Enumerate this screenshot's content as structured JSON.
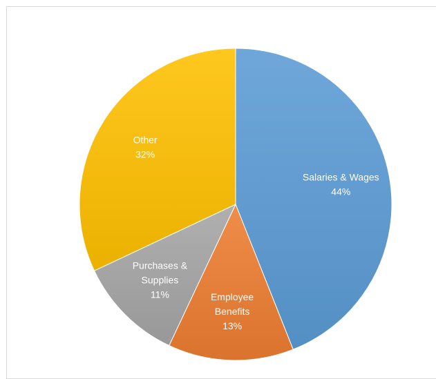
{
  "chart_data": {
    "type": "pie",
    "title": "",
    "slices": [
      {
        "label": "Salaries & Wages",
        "value": 44,
        "value_label": "44%",
        "color": "#5b9bd5",
        "label_lines": [
          "Salaries & Wages",
          "44%"
        ]
      },
      {
        "label": "Employee Benefits",
        "value": 13,
        "value_label": "13%",
        "color": "#ed7d31",
        "label_lines": [
          "Employee",
          "Benefits",
          "13%"
        ]
      },
      {
        "label": "Purchases & Supplies",
        "value": 11,
        "value_label": "11%",
        "color": "#a5a5a5",
        "label_lines": [
          "Purchases &",
          "Supplies",
          "11%"
        ]
      },
      {
        "label": "Other",
        "value": 32,
        "value_label": "32%",
        "color": "#ffc000",
        "label_lines": [
          "Other",
          "32%"
        ]
      }
    ],
    "start_angle_deg": 0,
    "direction": "clockwise",
    "legend": "none",
    "data_labels": "inside"
  }
}
